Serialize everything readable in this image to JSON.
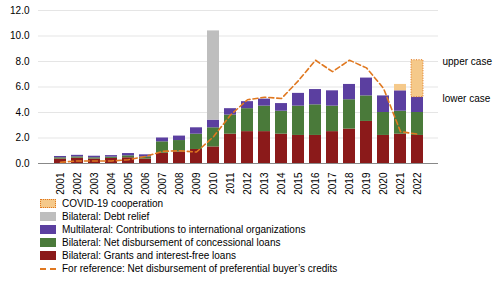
{
  "chart_data": {
    "type": "bar",
    "stacked": true,
    "categories": [
      2001,
      2002,
      2003,
      2004,
      2005,
      2006,
      2007,
      2008,
      2009,
      2010,
      2011,
      2012,
      2013,
      2014,
      2015,
      2016,
      2017,
      2018,
      2019,
      2020,
      2021,
      2022
    ],
    "series": [
      {
        "name": "Bilateral: Grants and interest-free loans",
        "color": "#8B1A1A",
        "values": [
          0.35,
          0.42,
          0.35,
          0.4,
          0.45,
          0.35,
          0.8,
          0.9,
          1.1,
          1.3,
          2.3,
          2.5,
          2.5,
          2.3,
          2.2,
          2.2,
          2.5,
          2.7,
          3.3,
          2.2,
          2.3,
          2.2
        ]
      },
      {
        "name": "Bilateral: Net disbursement of concessional loans",
        "color": "#4A7A3A",
        "values": [
          0.1,
          0.1,
          0.1,
          0.1,
          0.15,
          0.15,
          0.9,
          0.9,
          1.2,
          1.5,
          1.5,
          1.8,
          2.0,
          1.8,
          2.3,
          2.4,
          2.0,
          2.3,
          2.0,
          1.8,
          1.8,
          1.8
        ]
      },
      {
        "name": "Multilateral: Contributions to international organizations",
        "color": "#5B3FA0",
        "values": [
          0.1,
          0.12,
          0.12,
          0.12,
          0.18,
          0.18,
          0.3,
          0.35,
          0.5,
          0.6,
          0.5,
          0.55,
          0.55,
          0.6,
          1.0,
          1.2,
          1.2,
          1.2,
          1.4,
          1.3,
          1.6,
          1.2
        ]
      },
      {
        "name": "Bilateral: Debt relief",
        "color": "#BEBEBE",
        "values": [
          0.0,
          0.0,
          0.0,
          0.0,
          0.0,
          0.0,
          0.0,
          0.0,
          0.0,
          7.0,
          0.0,
          0.0,
          0.0,
          0.0,
          0.0,
          0.0,
          0.0,
          0.0,
          0.0,
          0.0,
          0.0,
          0.0
        ]
      },
      {
        "name": "COVID-19 cooperation",
        "color": "#F5C98A",
        "values": [
          0.0,
          0.0,
          0.0,
          0.0,
          0.0,
          0.0,
          0.0,
          0.0,
          0.0,
          0.0,
          0.0,
          0.0,
          0.0,
          0.0,
          0.0,
          0.0,
          0.0,
          0.0,
          0.0,
          0.0,
          0.5,
          0.0
        ]
      },
      {
        "name": "COVID-19 cooperation",
        "color": "#F5C98A",
        "line_style": "dotted",
        "values": [
          0.0,
          0.0,
          0.0,
          0.0,
          0.0,
          0.0,
          0.0,
          0.0,
          0.0,
          0.0,
          0.0,
          0.0,
          0.0,
          0.0,
          0.0,
          0.0,
          0.0,
          0.0,
          0.0,
          0.0,
          0.0,
          2.9
        ]
      },
      {
        "name": "For reference: Net disbursement of preferential buyer’s credits",
        "type": "line",
        "color": "#E07820",
        "line_style": "dashed",
        "values": [
          0.1,
          0.2,
          0.2,
          0.2,
          0.3,
          0.55,
          0.95,
          1.0,
          0.9,
          2.1,
          3.8,
          5.0,
          5.2,
          5.1,
          6.5,
          8.1,
          7.2,
          8.1,
          7.5,
          5.9,
          2.5,
          2.3
        ]
      }
    ],
    "ylim": [
      0,
      12.0
    ],
    "yticks": [
      {
        "value": 0,
        "label": "0.0"
      },
      {
        "value": 2,
        "label": "2.0"
      },
      {
        "value": 4,
        "label": "4.0"
      },
      {
        "value": 6,
        "label": "6.0"
      },
      {
        "value": 8,
        "label": "8.0"
      },
      {
        "value": 10,
        "label": "10.0"
      },
      {
        "value": 12,
        "label": "12.0"
      }
    ],
    "grid": true,
    "annotations": [
      "upper case",
      "lower case"
    ]
  }
}
